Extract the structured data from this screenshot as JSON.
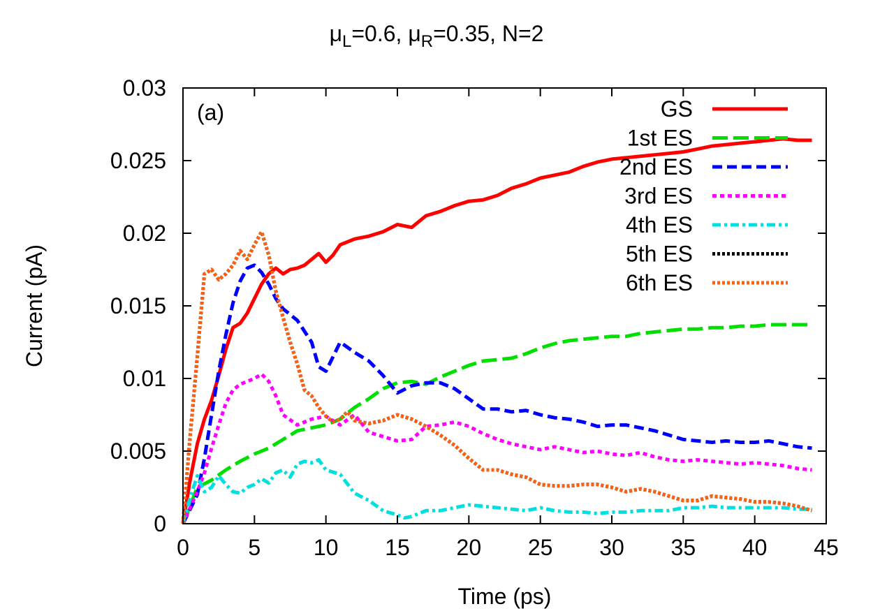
{
  "chart_data": {
    "type": "line",
    "title": "μL=0.6, μR=0.35, N=2",
    "title_parts": {
      "mu": "μ",
      "sub_left": "L",
      "left_value": "=0.6, ",
      "sub_right": "R",
      "right_value": "=0.35, N=2"
    },
    "panel_label": "(a)",
    "xlabel": "Time (ps)",
    "ylabel": "Current (pA)",
    "xlim": [
      0,
      45
    ],
    "ylim": [
      0,
      0.03
    ],
    "xticks": [
      0,
      5,
      10,
      15,
      20,
      25,
      30,
      35,
      40,
      45
    ],
    "xtick_labels": [
      "0",
      "5",
      "10",
      "15",
      "20",
      "25",
      "30",
      "35",
      "40",
      "45"
    ],
    "yticks": [
      0,
      0.005,
      0.01,
      0.015,
      0.02,
      0.025,
      0.03
    ],
    "ytick_labels": [
      "0",
      "0.005",
      "0.01",
      "0.015",
      "0.02",
      "0.025",
      "0.03"
    ],
    "grid": false,
    "legend_position": "top-right",
    "series": [
      {
        "name": "GS",
        "color": "#ff0000",
        "dash": "solid",
        "x": [
          0,
          0.5,
          1,
          1.5,
          2,
          2.5,
          3,
          3.5,
          4,
          4.5,
          5,
          5.5,
          6,
          6.5,
          7,
          7.5,
          8,
          8.5,
          9,
          9.5,
          10,
          10.5,
          11,
          12,
          13,
          14,
          15,
          16,
          17,
          18,
          19,
          20,
          21,
          22,
          23,
          24,
          25,
          26,
          27,
          28,
          29,
          30,
          31,
          32,
          33,
          34,
          35,
          36,
          37,
          38,
          39,
          40,
          41,
          42,
          43,
          44
        ],
        "y": [
          0,
          0.003,
          0.0055,
          0.0072,
          0.0085,
          0.0102,
          0.012,
          0.0135,
          0.0138,
          0.0145,
          0.0155,
          0.0165,
          0.0172,
          0.0176,
          0.0172,
          0.0175,
          0.0176,
          0.0178,
          0.0182,
          0.0186,
          0.018,
          0.0185,
          0.0192,
          0.0196,
          0.0198,
          0.0201,
          0.0206,
          0.0204,
          0.0212,
          0.0215,
          0.0219,
          0.0222,
          0.0223,
          0.0226,
          0.0231,
          0.0234,
          0.0238,
          0.024,
          0.0242,
          0.0246,
          0.0249,
          0.0251,
          0.0252,
          0.0253,
          0.0254,
          0.0255,
          0.0256,
          0.0258,
          0.026,
          0.0261,
          0.0262,
          0.0263,
          0.0264,
          0.0265,
          0.0264,
          0.0264
        ]
      },
      {
        "name": "1st ES",
        "color": "#00e000",
        "dash": "long-dash",
        "x": [
          0,
          1,
          2,
          3,
          4,
          5,
          6,
          7,
          8,
          9,
          10,
          11,
          12,
          13,
          14,
          15,
          16,
          17,
          18,
          19,
          20,
          21,
          22,
          23,
          24,
          25,
          26,
          27,
          28,
          29,
          30,
          31,
          32,
          33,
          34,
          35,
          36,
          37,
          38,
          39,
          40,
          41,
          42,
          43,
          44
        ],
        "y": [
          0,
          0.0025,
          0.003,
          0.0037,
          0.0043,
          0.0048,
          0.0052,
          0.0058,
          0.0064,
          0.0066,
          0.0068,
          0.0072,
          0.008,
          0.0086,
          0.0093,
          0.0097,
          0.0098,
          0.0096,
          0.0101,
          0.0105,
          0.0109,
          0.0112,
          0.0113,
          0.0114,
          0.0117,
          0.0121,
          0.0124,
          0.0126,
          0.0127,
          0.0128,
          0.0129,
          0.0129,
          0.0131,
          0.0132,
          0.0133,
          0.0134,
          0.0134,
          0.0135,
          0.0135,
          0.0136,
          0.0136,
          0.0137,
          0.0137,
          0.0137,
          0.0137
        ]
      },
      {
        "name": "2nd ES",
        "color": "#0000ff",
        "dash": "dash",
        "x": [
          0,
          1,
          1.5,
          2,
          2.5,
          3,
          3.5,
          4,
          4.5,
          5,
          5.5,
          6,
          6.5,
          7,
          8,
          9,
          9.5,
          10,
          11,
          12,
          13,
          14,
          15,
          16,
          17,
          18,
          19,
          20,
          21,
          22,
          23,
          24,
          25,
          26,
          27,
          28,
          29,
          30,
          31,
          32,
          33,
          34,
          35,
          36,
          37,
          38,
          39,
          40,
          41,
          42,
          43,
          44
        ],
        "y": [
          0,
          0.002,
          0.0045,
          0.0075,
          0.0105,
          0.013,
          0.0152,
          0.0167,
          0.0176,
          0.0178,
          0.0173,
          0.0165,
          0.0155,
          0.0148,
          0.014,
          0.0125,
          0.0108,
          0.0105,
          0.0125,
          0.0118,
          0.0112,
          0.0102,
          0.009,
          0.0095,
          0.0097,
          0.0097,
          0.0093,
          0.0086,
          0.0079,
          0.0079,
          0.0077,
          0.0078,
          0.0075,
          0.0073,
          0.0072,
          0.007,
          0.0067,
          0.0068,
          0.0068,
          0.0066,
          0.0064,
          0.0061,
          0.0058,
          0.0057,
          0.0056,
          0.0057,
          0.0056,
          0.0056,
          0.0057,
          0.0055,
          0.0053,
          0.0052
        ]
      },
      {
        "name": "3rd ES",
        "color": "#ff00ff",
        "dash": "dot",
        "x": [
          0,
          1,
          1.5,
          2,
          2.5,
          3,
          3.5,
          4,
          4.5,
          5,
          5.5,
          6,
          6.5,
          7,
          8,
          9,
          10,
          11,
          12,
          13,
          14,
          15,
          16,
          17,
          18,
          19,
          20,
          21,
          22,
          23,
          24,
          25,
          26,
          27,
          28,
          29,
          30,
          31,
          32,
          33,
          34,
          35,
          36,
          37,
          38,
          39,
          40,
          41,
          42,
          43,
          44
        ],
        "y": [
          0,
          0.0022,
          0.0035,
          0.0052,
          0.0068,
          0.0083,
          0.0092,
          0.0096,
          0.0098,
          0.01,
          0.0103,
          0.0098,
          0.0088,
          0.0075,
          0.0068,
          0.0072,
          0.0074,
          0.0068,
          0.0075,
          0.0063,
          0.006,
          0.0057,
          0.0058,
          0.0067,
          0.0068,
          0.007,
          0.0067,
          0.0062,
          0.0058,
          0.0055,
          0.0053,
          0.0051,
          0.0053,
          0.0051,
          0.0049,
          0.005,
          0.0048,
          0.0047,
          0.0049,
          0.0046,
          0.0044,
          0.0043,
          0.0044,
          0.0043,
          0.0042,
          0.0041,
          0.0042,
          0.0041,
          0.004,
          0.0038,
          0.0037
        ]
      },
      {
        "name": "4th ES",
        "color": "#00e0e0",
        "dash": "dash-dot",
        "x": [
          0,
          0.5,
          1,
          1.5,
          2,
          2.5,
          3,
          3.5,
          4,
          4.5,
          5,
          5.5,
          6,
          6.5,
          7,
          7.5,
          8,
          8.5,
          9,
          9.5,
          10,
          11,
          12,
          13,
          14,
          15,
          15.5,
          16,
          17,
          18,
          19,
          20,
          21,
          22,
          23,
          24,
          25,
          26,
          27,
          28,
          29,
          30,
          31,
          32,
          33,
          34,
          35,
          36,
          37,
          38,
          39,
          40,
          41,
          42,
          43,
          44
        ],
        "y": [
          0,
          0.0018,
          0.0033,
          0.0022,
          0.0025,
          0.0033,
          0.0027,
          0.0022,
          0.0021,
          0.0025,
          0.0027,
          0.0031,
          0.0028,
          0.0035,
          0.0037,
          0.0032,
          0.0041,
          0.0043,
          0.0042,
          0.0044,
          0.0037,
          0.0034,
          0.0021,
          0.0016,
          0.0009,
          0.0006,
          0.0004,
          0.0005,
          0.0009,
          0.0009,
          0.0011,
          0.0013,
          0.0012,
          0.0011,
          0.001,
          0.0009,
          0.0011,
          0.0009,
          0.0008,
          0.0008,
          0.0007,
          0.0008,
          0.0008,
          0.0009,
          0.0009,
          0.0009,
          0.0011,
          0.0011,
          0.0012,
          0.0011,
          0.0011,
          0.0011,
          0.0011,
          0.0011,
          0.001,
          0.001
        ]
      },
      {
        "name": "5th ES",
        "color": "#000000",
        "dash": "dot-dense",
        "x": [
          0,
          0.5,
          1,
          1.5,
          2,
          2.5,
          3,
          3.5,
          4,
          4.5,
          5,
          5.5,
          6,
          6.5,
          7,
          7.5,
          8,
          8.5,
          9,
          9.5,
          10,
          10.5,
          11,
          11.5,
          12,
          13,
          14,
          15,
          16,
          17,
          18,
          19,
          20,
          21,
          22,
          23,
          24,
          25,
          26,
          27,
          28,
          29,
          30,
          31,
          32,
          33,
          34,
          35,
          36,
          37,
          38,
          39,
          40,
          41,
          42,
          43,
          44
        ],
        "y": [
          0,
          0.006,
          0.0115,
          0.0172,
          0.0175,
          0.0168,
          0.0172,
          0.0178,
          0.0188,
          0.0182,
          0.0192,
          0.0201,
          0.0185,
          0.016,
          0.0142,
          0.0125,
          0.011,
          0.0092,
          0.0088,
          0.008,
          0.0074,
          0.007,
          0.0072,
          0.0077,
          0.0071,
          0.0069,
          0.0071,
          0.0075,
          0.0072,
          0.0067,
          0.0061,
          0.0054,
          0.0045,
          0.0037,
          0.0037,
          0.0034,
          0.0032,
          0.0027,
          0.0026,
          0.0026,
          0.0027,
          0.0027,
          0.0025,
          0.0022,
          0.0024,
          0.0022,
          0.0019,
          0.0016,
          0.0016,
          0.0019,
          0.0018,
          0.0017,
          0.0015,
          0.0015,
          0.0014,
          0.0012,
          0.0009
        ]
      },
      {
        "name": "6th ES",
        "color": "#ff6010",
        "dash": "dot-dense",
        "x": [
          0,
          0.5,
          1,
          1.5,
          2,
          2.5,
          3,
          3.5,
          4,
          4.5,
          5,
          5.5,
          6,
          6.5,
          7,
          7.5,
          8,
          8.5,
          9,
          9.5,
          10,
          10.5,
          11,
          11.5,
          12,
          13,
          14,
          15,
          16,
          17,
          18,
          19,
          20,
          21,
          22,
          23,
          24,
          25,
          26,
          27,
          28,
          29,
          30,
          31,
          32,
          33,
          34,
          35,
          36,
          37,
          38,
          39,
          40,
          41,
          42,
          43,
          44
        ],
        "y": [
          0,
          0.006,
          0.0115,
          0.0172,
          0.0175,
          0.0168,
          0.0172,
          0.0178,
          0.0188,
          0.0182,
          0.0192,
          0.0201,
          0.0185,
          0.016,
          0.0142,
          0.0125,
          0.011,
          0.0092,
          0.0088,
          0.008,
          0.0074,
          0.007,
          0.0072,
          0.0077,
          0.0071,
          0.0069,
          0.0071,
          0.0075,
          0.0072,
          0.0067,
          0.0061,
          0.0054,
          0.0045,
          0.0037,
          0.0037,
          0.0034,
          0.0032,
          0.0027,
          0.0026,
          0.0026,
          0.0027,
          0.0027,
          0.0025,
          0.0022,
          0.0024,
          0.0022,
          0.0019,
          0.0016,
          0.0016,
          0.0019,
          0.0018,
          0.0017,
          0.0015,
          0.0015,
          0.0014,
          0.0012,
          0.0009
        ]
      }
    ]
  }
}
